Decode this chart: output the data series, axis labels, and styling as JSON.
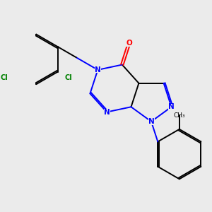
{
  "bg_color": "#ebebeb",
  "bond_color": "#000000",
  "N_color": "#0000ff",
  "O_color": "#ff0000",
  "Cl_color": "#008000",
  "line_width": 1.4,
  "dbo": 0.055,
  "xlim": [
    -3.5,
    3.5
  ],
  "ylim": [
    -3.2,
    2.8
  ]
}
